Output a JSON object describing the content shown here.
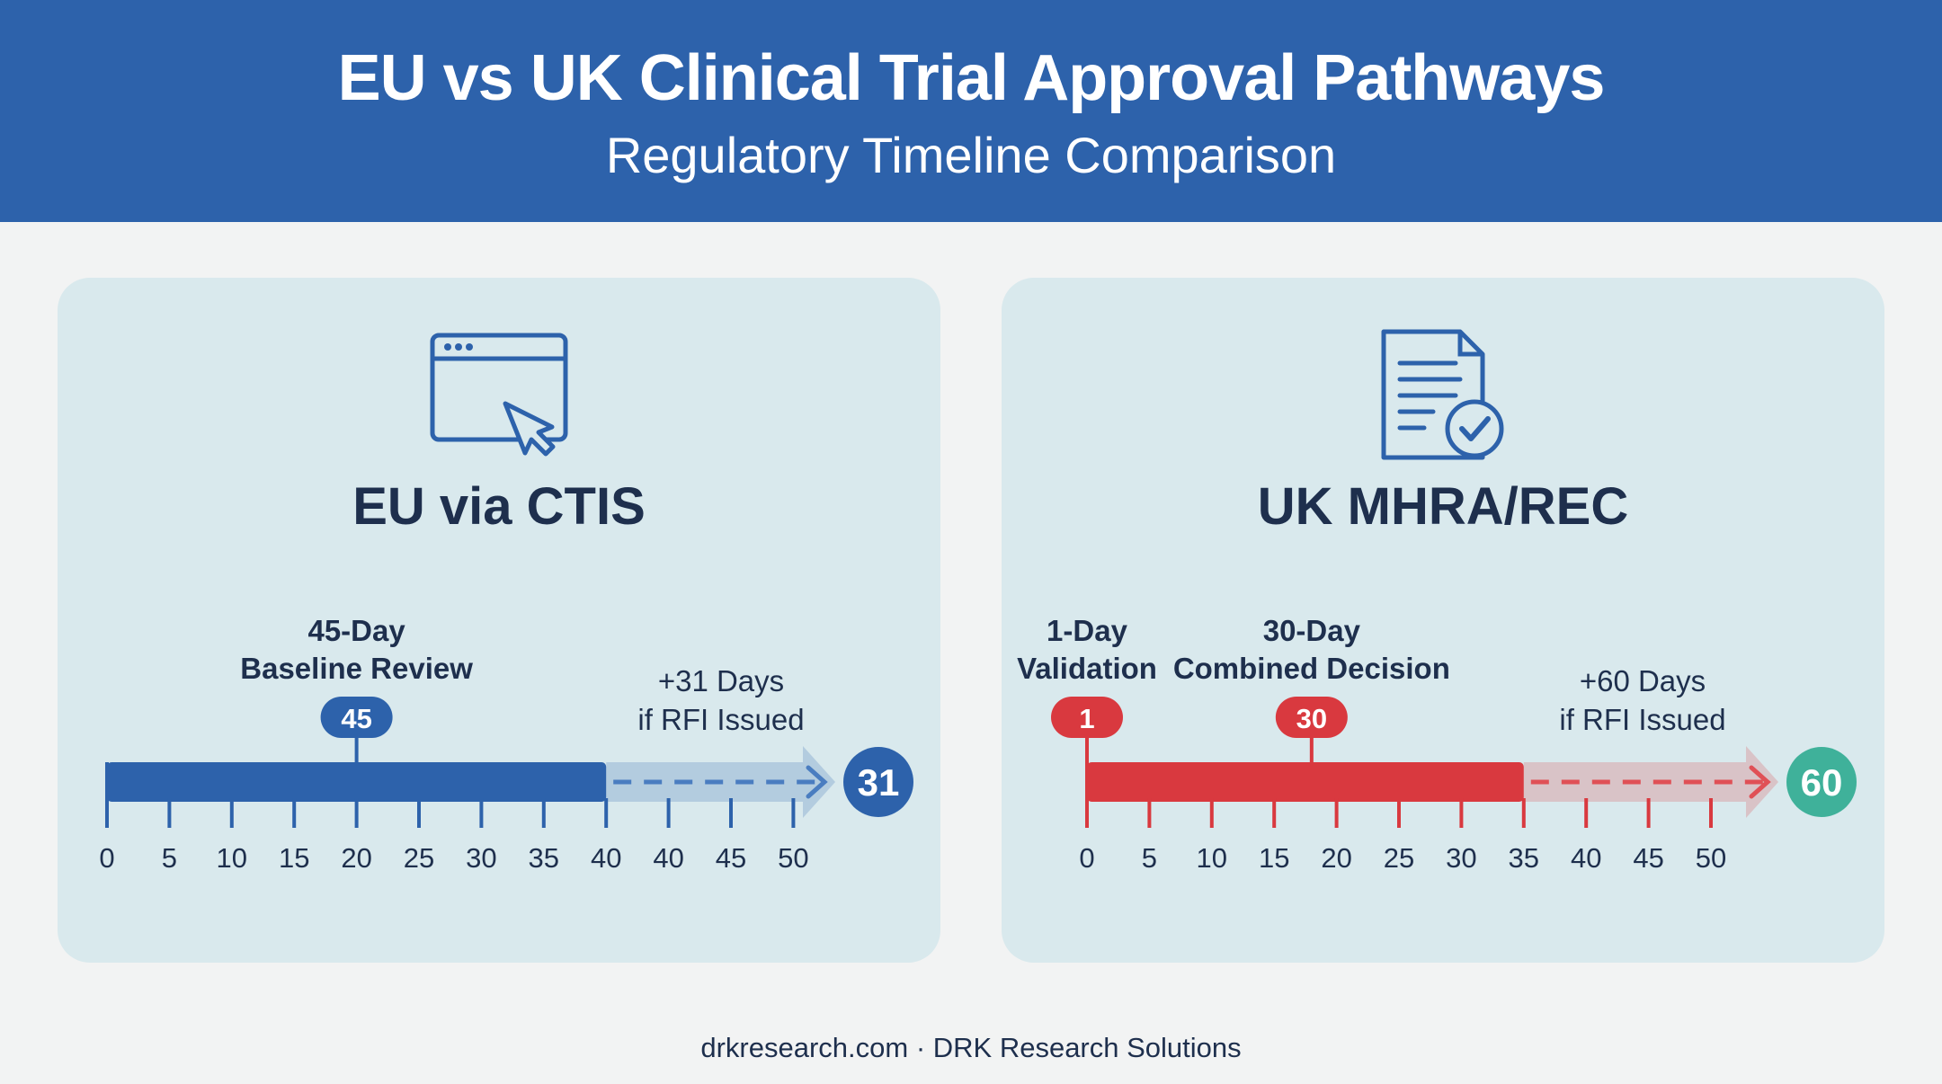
{
  "header": {
    "title": "EU vs UK Clinical Trial Approval Pathways",
    "subtitle": "Regulatory Timeline Comparison"
  },
  "panels": [
    {
      "name": "EU via CTIS",
      "icon": "browser-window-cursor-icon",
      "accent": "#2d62ab",
      "dashed_color": "#4a7dc0",
      "end_badge_color": "#2d62ab",
      "tick_labels": [
        "0",
        "5",
        "10",
        "15",
        "20",
        "25",
        "30",
        "35",
        "40",
        "40",
        "45",
        "50"
      ],
      "solid_ticks": 9,
      "milestones": [
        {
          "value": "45",
          "label_lines": [
            "45-Day",
            "Baseline Review"
          ],
          "tick_index": 4
        }
      ],
      "extension": {
        "value": "31",
        "label_lines": [
          "+31 Days",
          "if RFI Issued"
        ]
      }
    },
    {
      "name": "UK MHRA/REC",
      "icon": "document-checkmark-icon",
      "accent": "#d9393f",
      "dashed_color": "#e05056",
      "end_badge_color": "#3fb19a",
      "tick_labels": [
        "0",
        "5",
        "10",
        "15",
        "20",
        "25",
        "30",
        "35",
        "40",
        "45",
        "50"
      ],
      "solid_ticks": 8,
      "milestones": [
        {
          "value": "1",
          "label_lines": [
            "1-Day",
            "Validation"
          ],
          "tick_index": 0
        },
        {
          "value": "30",
          "label_lines": [
            "30-Day",
            "Combined Decision"
          ],
          "tick_index": 3.6
        }
      ],
      "extension": {
        "value": "60",
        "label_lines": [
          "+60 Days",
          "if RFI Issued"
        ]
      }
    }
  ],
  "footer": {
    "text": "drkresearch.com · DRK Research Solutions"
  }
}
